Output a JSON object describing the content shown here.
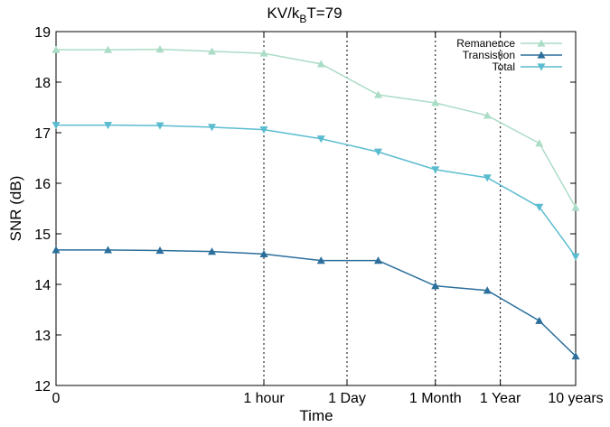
{
  "chart_data": {
    "type": "line",
    "title_prefix": "KV/k",
    "title_subscript": "B",
    "title_suffix": "T=79",
    "xlabel": "Time",
    "ylabel": "SNR (dB)",
    "ylim": [
      12,
      19
    ],
    "xlim": [
      0,
      10
    ],
    "yticks": [
      12,
      13,
      14,
      15,
      16,
      17,
      18,
      19
    ],
    "xticks": [
      {
        "label": "0",
        "x": 0
      },
      {
        "label": "1 hour",
        "x": 4
      },
      {
        "label": "1 Day",
        "x": 5.6
      },
      {
        "label": "1 Month",
        "x": 7.3
      },
      {
        "label": "1 Year",
        "x": 8.55
      },
      {
        "label": "10 years",
        "x": 10
      }
    ],
    "vlines": [
      4,
      5.6,
      7.3,
      8.55
    ],
    "legend_position": "top-right",
    "x": [
      0,
      1,
      2,
      3,
      4,
      5.1,
      6.2,
      7.3,
      8.3,
      9.3,
      10
    ],
    "series": [
      {
        "name": "Remanence",
        "marker": "triangle-up",
        "color": "#abdcc6",
        "values": [
          18.64,
          18.64,
          18.65,
          18.61,
          18.57,
          18.36,
          17.75,
          17.59,
          17.34,
          16.79,
          15.52
        ]
      },
      {
        "name": "Transistion",
        "marker": "triangle-up",
        "color": "#2c6f9c",
        "values": [
          14.68,
          14.68,
          14.67,
          14.65,
          14.6,
          14.47,
          14.47,
          13.97,
          13.88,
          13.28,
          12.58
        ]
      },
      {
        "name": "Total",
        "marker": "triangle-down",
        "color": "#5bbcd0",
        "values": [
          17.15,
          17.15,
          17.14,
          17.11,
          17.06,
          16.88,
          16.62,
          16.27,
          16.11,
          15.53,
          14.55
        ]
      }
    ]
  }
}
